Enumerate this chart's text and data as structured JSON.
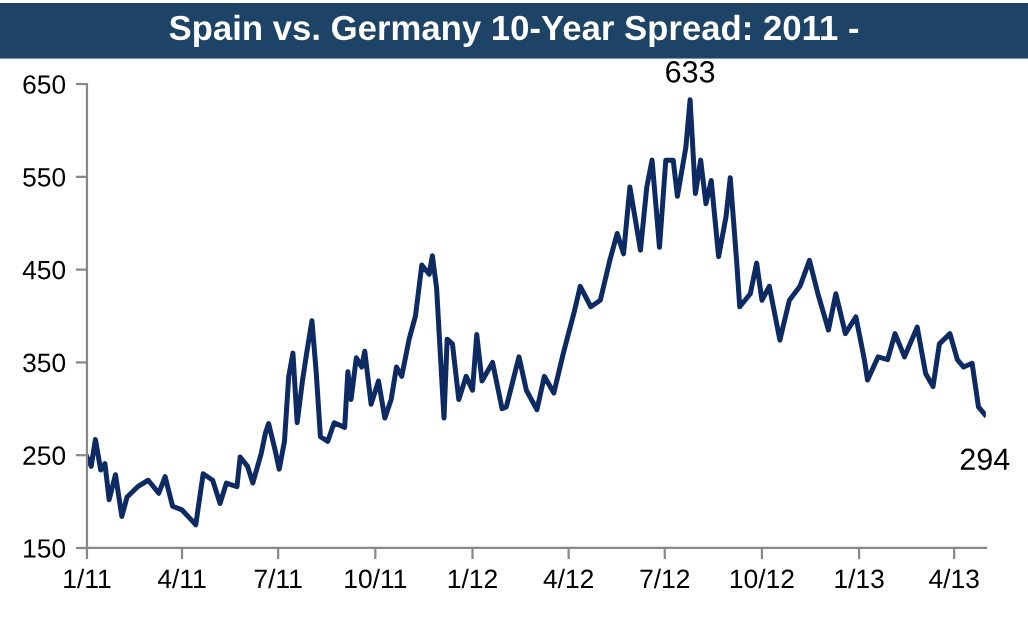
{
  "chart_data": {
    "type": "line",
    "title": "Spain vs. Germany 10-Year Spread: 2011 -",
    "series": [
      {
        "color": "#0d2a63",
        "x": [
          "2011-01-01",
          "2011-01-05",
          "2011-01-09",
          "2011-01-14",
          "2011-01-18",
          "2011-01-22",
          "2011-01-28",
          "2011-02-03",
          "2011-02-08",
          "2011-02-18",
          "2011-02-28",
          "2011-03-10",
          "2011-03-16",
          "2011-03-23",
          "2011-04-01",
          "2011-04-10",
          "2011-04-14",
          "2011-04-21",
          "2011-04-30",
          "2011-05-07",
          "2011-05-13",
          "2011-05-23",
          "2011-05-26",
          "2011-06-02",
          "2011-06-07",
          "2011-06-15",
          "2011-06-19",
          "2011-06-22",
          "2011-06-28",
          "2011-07-02",
          "2011-07-07",
          "2011-07-11",
          "2011-07-15",
          "2011-07-19",
          "2011-07-24",
          "2011-07-28",
          "2011-08-02",
          "2011-08-06",
          "2011-08-10",
          "2011-08-17",
          "2011-08-23",
          "2011-09-02",
          "2011-09-05",
          "2011-09-08",
          "2011-09-13",
          "2011-09-18",
          "2011-09-21",
          "2011-09-27",
          "2011-10-04",
          "2011-10-10",
          "2011-10-16",
          "2011-10-21",
          "2011-10-26",
          "2011-11-02",
          "2011-11-08",
          "2011-11-14",
          "2011-11-21",
          "2011-11-24",
          "2011-11-28",
          "2011-12-02",
          "2011-12-05",
          "2011-12-08",
          "2011-12-13",
          "2011-12-19",
          "2011-12-26",
          "2012-01-01",
          "2012-01-05",
          "2012-01-10",
          "2012-01-20",
          "2012-01-29",
          "2012-02-02",
          "2012-02-14",
          "2012-02-21",
          "2012-03-02",
          "2012-03-09",
          "2012-03-18",
          "2012-03-27",
          "2012-04-06",
          "2012-04-12",
          "2012-04-22",
          "2012-05-01",
          "2012-05-10",
          "2012-05-17",
          "2012-05-23",
          "2012-05-29",
          "2012-06-08",
          "2012-06-14",
          "2012-06-19",
          "2012-06-26",
          "2012-07-02",
          "2012-07-09",
          "2012-07-13",
          "2012-07-21",
          "2012-07-25",
          "2012-07-30",
          "2012-08-04",
          "2012-08-09",
          "2012-08-14",
          "2012-08-21",
          "2012-08-28",
          "2012-09-01",
          "2012-09-07",
          "2012-09-10",
          "2012-09-20",
          "2012-09-26",
          "2012-10-01",
          "2012-10-08",
          "2012-10-18",
          "2012-10-27",
          "2012-11-06",
          "2012-11-15",
          "2012-11-23",
          "2012-12-03",
          "2012-12-10",
          "2012-12-19",
          "2012-12-29",
          "2013-01-06",
          "2013-01-09",
          "2013-01-19",
          "2013-01-28",
          "2013-02-04",
          "2013-02-13",
          "2013-02-25",
          "2013-03-05",
          "2013-03-12",
          "2013-03-18",
          "2013-03-28",
          "2013-04-04",
          "2013-04-10",
          "2013-04-18",
          "2013-04-24",
          "2013-04-30"
        ],
        "values": [
          248,
          238,
          267,
          234,
          241,
          202,
          229,
          184,
          205,
          216,
          223,
          209,
          227,
          195,
          191,
          180,
          175,
          230,
          223,
          198,
          220,
          216,
          248,
          238,
          220,
          252,
          274,
          284,
          256,
          235,
          265,
          335,
          360,
          285,
          330,
          360,
          395,
          340,
          270,
          265,
          285,
          280,
          340,
          310,
          355,
          345,
          362,
          305,
          330,
          290,
          310,
          345,
          335,
          375,
          400,
          455,
          445,
          465,
          430,
          350,
          290,
          375,
          370,
          310,
          335,
          320,
          380,
          330,
          350,
          300,
          302,
          356,
          320,
          299,
          335,
          317,
          360,
          403,
          432,
          410,
          417,
          460,
          489,
          467,
          539,
          471,
          539,
          568,
          474,
          568,
          568,
          529,
          582,
          633,
          532,
          568,
          521,
          546,
          464,
          507,
          549,
          460,
          410,
          424,
          457,
          417,
          432,
          374,
          417,
          432,
          460,
          424,
          385,
          424,
          381,
          399,
          353,
          331,
          356,
          353,
          381,
          356,
          388,
          338,
          324,
          370,
          381,
          353,
          345,
          349,
          302,
          294
        ]
      }
    ],
    "xlim": [
      "2011-01-01",
      "2013-05-01"
    ],
    "xticks": [
      {
        "value": "2011-01-01",
        "label": "1/11"
      },
      {
        "value": "2011-04-01",
        "label": "4/11"
      },
      {
        "value": "2011-07-01",
        "label": "7/11"
      },
      {
        "value": "2011-10-01",
        "label": "10/11"
      },
      {
        "value": "2012-01-01",
        "label": "1/12"
      },
      {
        "value": "2012-04-01",
        "label": "4/12"
      },
      {
        "value": "2012-07-01",
        "label": "7/12"
      },
      {
        "value": "2012-10-01",
        "label": "10/12"
      },
      {
        "value": "2013-01-01",
        "label": "1/13"
      },
      {
        "value": "2013-04-01",
        "label": "4/13"
      }
    ],
    "ylim": [
      150,
      650
    ],
    "yticks": [
      150,
      250,
      350,
      450,
      550,
      650
    ],
    "annotations": [
      {
        "text": "633",
        "x": "2012-07-25",
        "y": 633
      },
      {
        "text": "294",
        "x": "2013-04-30",
        "y": 294
      }
    ],
    "grid": false,
    "legend": false
  }
}
